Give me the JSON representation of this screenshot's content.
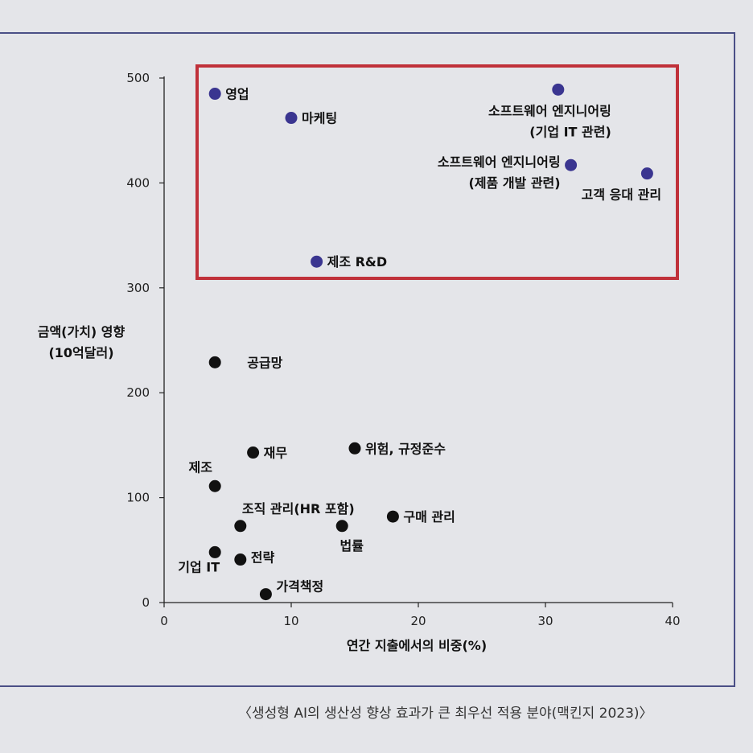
{
  "chart_data": {
    "type": "scatter",
    "xlabel": "연간 지출에서의 비중(%)",
    "ylabel": [
      "금액(가치) 영향",
      "(10억달러)"
    ],
    "xlim": [
      0,
      40
    ],
    "ylim": [
      0,
      500
    ],
    "xticks": [
      0,
      10,
      20,
      30,
      40
    ],
    "yticks": [
      0,
      100,
      200,
      300,
      400,
      500
    ],
    "grid": false,
    "highlight_color": "#c0313a",
    "highlighted_color": "#3a3590",
    "default_color": "#111111",
    "points": [
      {
        "label": [
          "영업"
        ],
        "x": 4,
        "y": 485,
        "highlighted": true
      },
      {
        "label": [
          "마케팅"
        ],
        "x": 10,
        "y": 462,
        "highlighted": true
      },
      {
        "label": [
          "소프트웨어 엔지니어링",
          "(기업 IT 관련)"
        ],
        "x": 31,
        "y": 489,
        "highlighted": true
      },
      {
        "label": [
          "소프트웨어 엔지니어링",
          "(제품 개발 관련)"
        ],
        "x": 32,
        "y": 417,
        "highlighted": true
      },
      {
        "label": [
          "고객 응대 관리"
        ],
        "x": 38,
        "y": 409,
        "highlighted": true
      },
      {
        "label": [
          "제조 R&D"
        ],
        "x": 12,
        "y": 325,
        "highlighted": true
      },
      {
        "label": [
          "공급망"
        ],
        "x": 4,
        "y": 229,
        "highlighted": false
      },
      {
        "label": [
          "재무"
        ],
        "x": 7,
        "y": 143,
        "highlighted": false
      },
      {
        "label": [
          "위험, 규정준수"
        ],
        "x": 15,
        "y": 147,
        "highlighted": false
      },
      {
        "label": [
          "제조"
        ],
        "x": 4,
        "y": 111,
        "highlighted": false
      },
      {
        "label": [
          "조직 관리(HR 포함)"
        ],
        "x": 6,
        "y": 73,
        "highlighted": false
      },
      {
        "label": [
          "법률"
        ],
        "x": 14,
        "y": 73,
        "highlighted": false
      },
      {
        "label": [
          "구매 관리"
        ],
        "x": 18,
        "y": 82,
        "highlighted": false
      },
      {
        "label": [
          "기업 IT"
        ],
        "x": 4,
        "y": 48,
        "highlighted": false
      },
      {
        "label": [
          "전략"
        ],
        "x": 6,
        "y": 41,
        "highlighted": false
      },
      {
        "label": [
          "가격책정"
        ],
        "x": 8,
        "y": 8,
        "highlighted": false
      }
    ]
  },
  "caption": "〈생성형 AI의 생산성 향상 효과가 큰 최우선 적용 분야(맥킨지 2023)〉"
}
